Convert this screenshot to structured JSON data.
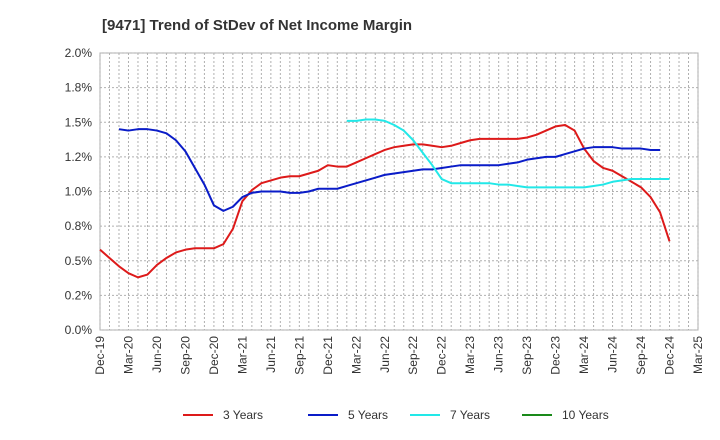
{
  "chart_data": {
    "type": "line",
    "title": "[9471]  Trend of StDev of Net Income Margin",
    "xlabel": "",
    "ylabel": "",
    "ylim": [
      0,
      2.0
    ],
    "grid": true,
    "legend_position": "bottom",
    "y_ticks": [
      "0.0%",
      "0.2%",
      "0.5%",
      "0.8%",
      "1.0%",
      "1.2%",
      "1.5%",
      "1.8%",
      "2.0%"
    ],
    "x_ticks": [
      "Dec-19",
      "Mar-20",
      "Jun-20",
      "Sep-20",
      "Dec-20",
      "Mar-21",
      "Jun-21",
      "Sep-21",
      "Dec-21",
      "Mar-22",
      "Jun-22",
      "Sep-22",
      "Dec-22",
      "Mar-23",
      "Jun-23",
      "Sep-23",
      "Dec-23",
      "Mar-24",
      "Jun-24",
      "Sep-24",
      "Dec-24",
      "Mar-25"
    ],
    "x_start": "Dec-19",
    "series": [
      {
        "name": "3 Years",
        "color": "#dd1a1a",
        "values": [
          0.58,
          0.52,
          0.46,
          0.41,
          0.38,
          0.4,
          0.47,
          0.52,
          0.56,
          0.58,
          0.59,
          0.59,
          0.59,
          0.62,
          0.73,
          0.93,
          1.01,
          1.06,
          1.08,
          1.1,
          1.11,
          1.11,
          1.13,
          1.15,
          1.19,
          1.18,
          1.18,
          1.21,
          1.24,
          1.27,
          1.3,
          1.32,
          1.33,
          1.34,
          1.34,
          1.33,
          1.32,
          1.33,
          1.35,
          1.37,
          1.38,
          1.38,
          1.38,
          1.38,
          1.38,
          1.39,
          1.41,
          1.44,
          1.47,
          1.48,
          1.44,
          1.31,
          1.22,
          1.17,
          1.15,
          1.11,
          1.07,
          1.03,
          0.96,
          0.85,
          0.64
        ]
      },
      {
        "name": "5 Years",
        "color": "#0a1cc8",
        "offset": 2,
        "values": [
          1.45,
          1.44,
          1.45,
          1.45,
          1.44,
          1.42,
          1.37,
          1.29,
          1.17,
          1.05,
          0.9,
          0.86,
          0.89,
          0.96,
          0.99,
          1.0,
          1.0,
          1.0,
          0.99,
          0.99,
          1.0,
          1.02,
          1.02,
          1.02,
          1.04,
          1.06,
          1.08,
          1.1,
          1.12,
          1.13,
          1.14,
          1.15,
          1.16,
          1.16,
          1.17,
          1.18,
          1.19,
          1.19,
          1.19,
          1.19,
          1.19,
          1.2,
          1.21,
          1.23,
          1.24,
          1.25,
          1.25,
          1.27,
          1.29,
          1.31,
          1.32,
          1.32,
          1.32,
          1.31,
          1.31,
          1.31,
          1.3,
          1.3
        ]
      },
      {
        "name": "7 Years",
        "color": "#22e8e8",
        "offset": 26,
        "values": [
          1.51,
          1.51,
          1.52,
          1.52,
          1.51,
          1.48,
          1.44,
          1.37,
          1.28,
          1.19,
          1.09,
          1.06,
          1.06,
          1.06,
          1.06,
          1.06,
          1.05,
          1.05,
          1.04,
          1.03,
          1.03,
          1.03,
          1.03,
          1.03,
          1.03,
          1.03,
          1.04,
          1.05,
          1.07,
          1.08,
          1.09,
          1.09,
          1.09,
          1.09,
          1.09
        ]
      },
      {
        "name": "10 Years",
        "color": "#1a8a1a",
        "values": []
      }
    ]
  }
}
